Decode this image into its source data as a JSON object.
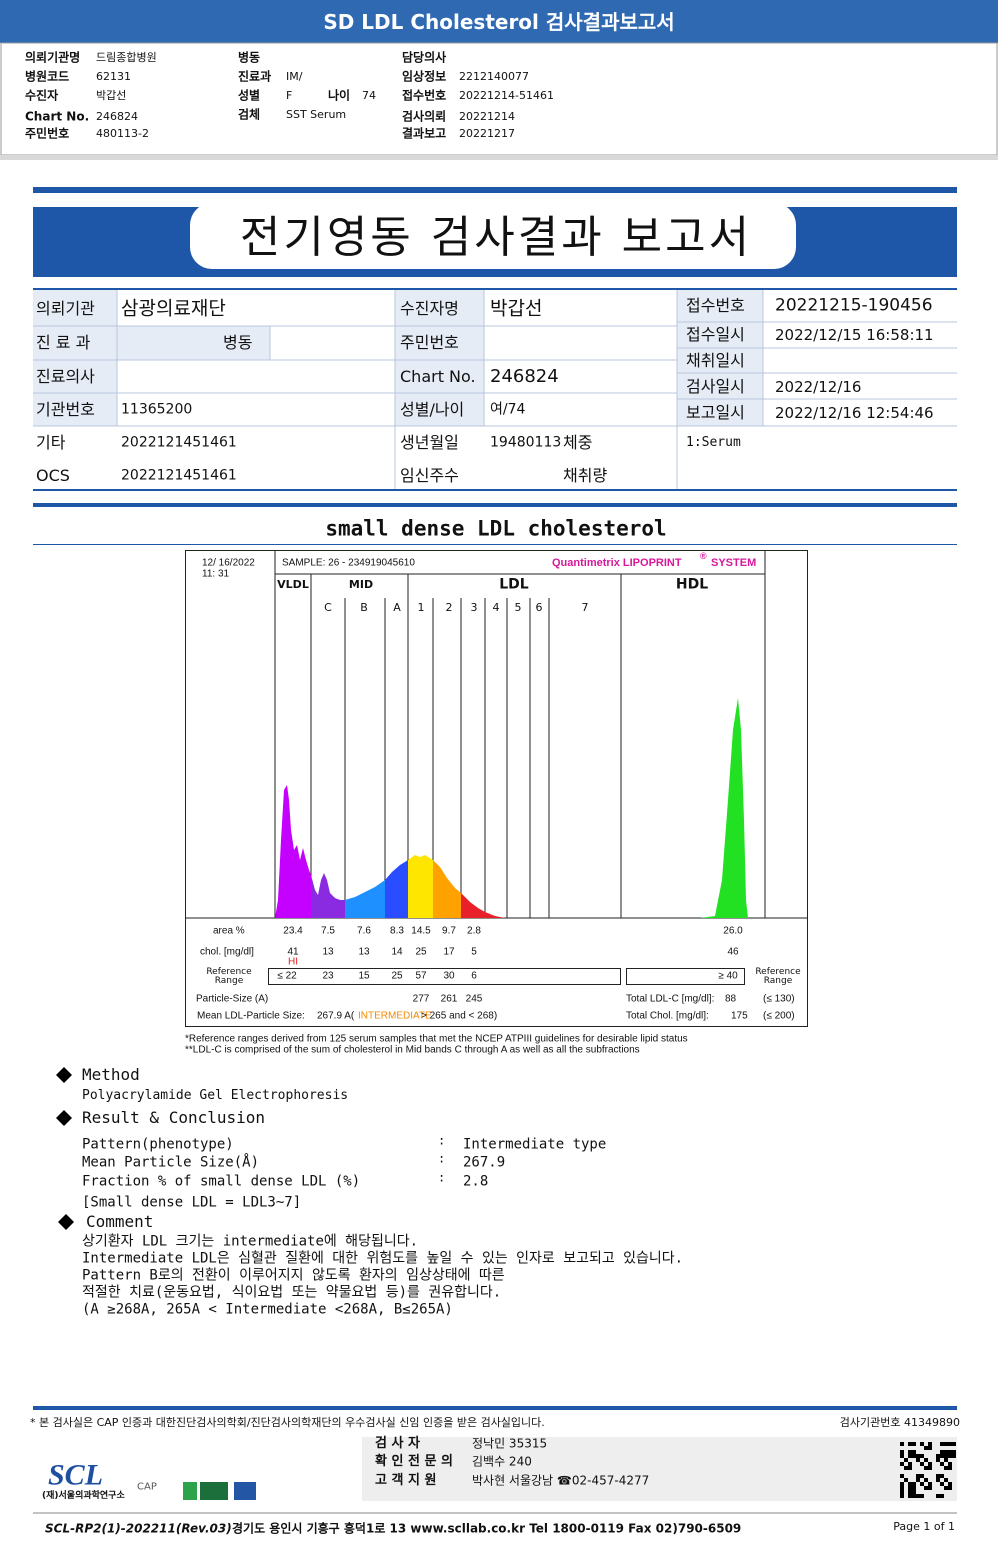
{
  "header": {
    "title": "SD LDL Cholesterol 검사결과보고서"
  },
  "summary": {
    "col1": [
      {
        "label": "의뢰기관명",
        "value": "드림종합병원"
      },
      {
        "label": "병원코드",
        "value": "62131"
      },
      {
        "label": "수진자",
        "value": "박갑선"
      },
      {
        "label": "Chart No.",
        "value": "246824"
      },
      {
        "label": "주민번호",
        "value": "480113-2"
      }
    ],
    "col2": [
      {
        "label": "병동"
      },
      {
        "label": "진료과",
        "value": "IM/"
      },
      {
        "label": "성별",
        "value": "F"
      },
      {
        "label": "검체",
        "value": "SST Serum"
      }
    ],
    "age": {
      "label": "나이",
      "value": "74"
    },
    "col3": [
      {
        "label": "담당의사"
      },
      {
        "label": "임상정보",
        "value": "2212140077"
      },
      {
        "label": "접수번호",
        "value": "20221214-51461"
      },
      {
        "label": "검사의뢰",
        "value": "20221214"
      },
      {
        "label": "결과보고",
        "value": "20221217"
      }
    ]
  },
  "report": {
    "title": "전기영동 검사결과 보고서",
    "info": {
      "institution": {
        "label": "의뢰기관",
        "value": "삼광의료재단"
      },
      "department": {
        "label": "진 료 과",
        "ward": "병동"
      },
      "doctor": {
        "label": "진료의사"
      },
      "org_no": {
        "label": "기관번호",
        "value": "11365200"
      },
      "etc": {
        "label": "기타",
        "value": "2022121451461"
      },
      "ocs": {
        "label": "OCS",
        "value": "2022121451461"
      },
      "patient": {
        "label": "수진자명",
        "value": "박갑선"
      },
      "resident_no": {
        "label": "주민번호"
      },
      "chart_no": {
        "label": "Chart No.",
        "value": "246824"
      },
      "sex_age": {
        "label": "성별/나이",
        "value": "여/74"
      },
      "birth": {
        "label": "생년월일",
        "value": "19480113",
        "weight": "체중"
      },
      "pregnancy": {
        "label": "임신주수",
        "amount": "채취량"
      },
      "receipt_no": {
        "label": "접수번호",
        "value": "20221215-190456"
      },
      "receipt_time": {
        "label": "접수일시",
        "value": "2022/12/15 16:58:11"
      },
      "collect_time": {
        "label": "채취일시"
      },
      "test_date": {
        "label": "검사일시",
        "value": "2022/12/16"
      },
      "report_time": {
        "label": "보고일시",
        "value": "2022/12/16 12:54:46"
      },
      "specimen": "1:Serum"
    }
  },
  "section_title": "small dense LDL cholesterol",
  "lipoprint": {
    "date": "12/ 16/2022",
    "time": "11: 31",
    "sample": "SAMPLE:   26 - 234919045610",
    "brand": "Quantimetrix LIPOPRINT",
    "brand_mark": "®",
    "brand_suffix": "SYSTEM",
    "groups": [
      "VLDL",
      "MID",
      "LDL",
      "HDL"
    ],
    "bands": [
      "C",
      "B",
      "A",
      "1",
      "2",
      "3",
      "4",
      "5",
      "6",
      "7"
    ],
    "area_label": "area %",
    "areas": [
      "23.4",
      "7.5",
      "7.6",
      "8.3",
      "14.5",
      "9.7",
      "2.8",
      "26.0"
    ],
    "chol_label": "chol. [mg/dl]",
    "chol": [
      "41",
      "13",
      "13",
      "14",
      "25",
      "17",
      "5",
      "46"
    ],
    "flag": "HI",
    "ref_label": "Reference Range",
    "ref": [
      "≤ 22",
      "23",
      "15",
      "25",
      "57",
      "30",
      "6"
    ],
    "hdl_ref": "≥ 40",
    "particle_label": "Particle-Size (A)",
    "particle": [
      "277",
      "261",
      "245"
    ],
    "mean_label": "Mean LDL-Particle Size:",
    "mean_value": "267.9 A(",
    "mean_class": "INTERMEDIATE",
    "mean_range": "> 265 and < 268)",
    "total_ldl_label": "Total LDL-C [mg/dl]:",
    "total_ldl": "88",
    "total_ldl_ref": "(≤ 130)",
    "total_chol_label": "Total Chol. [mg/dl]:",
    "total_chol": "175",
    "total_chol_ref": "(≤ 200)",
    "footnotes": [
      "*Reference ranges derived from 125 serum samples that met the NCEP ATPIII guidelines for desirable lipid status",
      "**LDL-C is comprised of the sum of cholesterol in Mid bands C through A as well as all the subfractions"
    ]
  },
  "method": {
    "title": "Method",
    "text": "Polyacrylamide Gel Electrophoresis"
  },
  "result": {
    "title": "Result & Conclusion",
    "separator": ":",
    "rows": [
      {
        "label": "Pattern(phenotype)",
        "value": "Intermediate type"
      },
      {
        "label": "Mean Particle Size(Å)",
        "value": "267.9"
      },
      {
        "label": "Fraction % of small dense LDL (%)",
        "value": "2.8"
      }
    ],
    "note": "[Small dense LDL = LDL3~7]"
  },
  "comment": {
    "title": "Comment",
    "lines": [
      "상기환자 LDL 크기는 intermediate에 해당됩니다.",
      "Intermediate LDL은 심혈관 질환에 대한 위험도를 높일 수 있는 인자로 보고되고 있습니다.",
      "Pattern B로의 전환이 이루어지지 않도록 환자의 임상상태에 따른",
      "적절한 치료(운동요법, 식이요법 또는 약물요법 등)를 권유합니다.",
      "(A ≥268A, 265A < Intermediate <268A, B≤265A)"
    ]
  },
  "footer": {
    "cert": "* 본 검사실은 CAP 인증과 대한진단검사의학회/진단검사의학재단의 우수검사실 신임 인증을 받은 검사실입니다.",
    "lab_no": "검사기관번호 41349890",
    "logo": "SCL",
    "logo_org": "(재)서울의과학연구소",
    "cap": "CAP",
    "staff": [
      {
        "role": "검 사 자",
        "name": "정낙민 35315"
      },
      {
        "role": "확 인 전 문 의",
        "name": "김백수 240"
      },
      {
        "role": "고 객 지 원",
        "name": "박사현 서울강남 ☎02-457-4277"
      }
    ],
    "form": "SCL-RP2(1)-202211(Rev.03)",
    "address": "경기도 용인시 기흥구 흥덕1로 13   www.scllab.co.kr   Tel 1800-0119   Fax 02)790-6509",
    "page": "Page 1 of 1"
  }
}
